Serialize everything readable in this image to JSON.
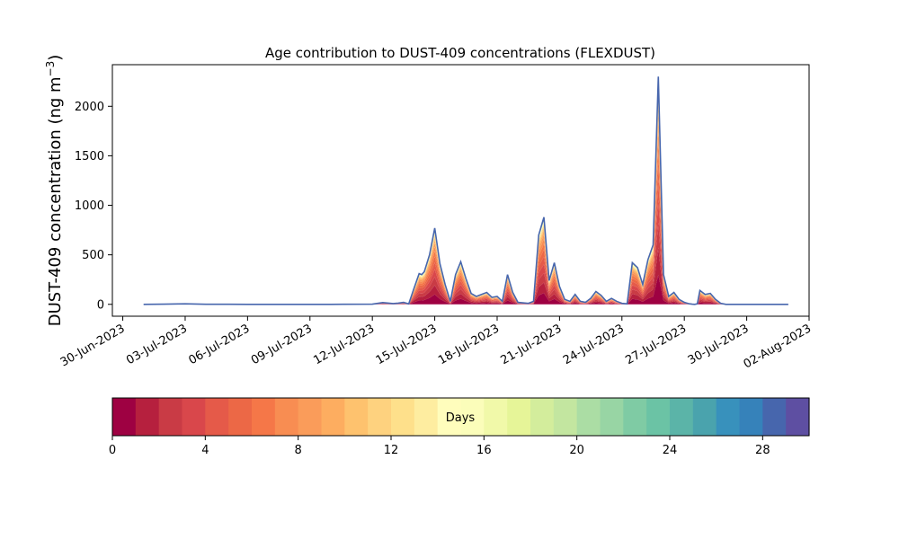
{
  "chart_data": {
    "type": "area",
    "title": "Age contribution to DUST-409 concentrations (FLEXDUST)",
    "ylabel": "DUST-409 concentration (ng m⁻³)",
    "ylabel_main": "DUST-409 concentration (ng m",
    "ylabel_sup": "−3",
    "ylabel_close": ")",
    "xlabel": "",
    "ylim": [
      -120,
      2420
    ],
    "xlim": [
      "2023-06-29T12:00",
      "2023-08-02T00:00"
    ],
    "yticks": [
      0,
      500,
      1000,
      1500,
      2000
    ],
    "ytick_labels": [
      "0",
      "500",
      "1000",
      "1500",
      "2000"
    ],
    "xticks": [
      "2023-06-30",
      "2023-07-03",
      "2023-07-06",
      "2023-07-09",
      "2023-07-12",
      "2023-07-15",
      "2023-07-18",
      "2023-07-21",
      "2023-07-24",
      "2023-07-27",
      "2023-07-30",
      "2023-08-02"
    ],
    "xtick_labels": [
      "30-Jun-2023",
      "03-Jul-2023",
      "06-Jul-2023",
      "09-Jul-2023",
      "12-Jul-2023",
      "15-Jul-2023",
      "18-Jul-2023",
      "21-Jul-2023",
      "24-Jul-2023",
      "27-Jul-2023",
      "30-Jul-2023",
      "02-Aug-2023"
    ],
    "grid": false,
    "x": [
      "2023-07-01T00:00",
      "2023-07-02T00:00",
      "2023-07-03T00:00",
      "2023-07-04T00:00",
      "2023-07-06T00:00",
      "2023-07-08T00:00",
      "2023-07-10T00:00",
      "2023-07-12T00:00",
      "2023-07-12T12:00",
      "2023-07-13T00:00",
      "2023-07-13T06:00",
      "2023-07-13T12:00",
      "2023-07-13T18:00",
      "2023-07-14T00:00",
      "2023-07-14T06:00",
      "2023-07-14T09:00",
      "2023-07-14T12:00",
      "2023-07-14T18:00",
      "2023-07-15T00:00",
      "2023-07-15T06:00",
      "2023-07-15T12:00",
      "2023-07-15T18:00",
      "2023-07-16T00:00",
      "2023-07-16T06:00",
      "2023-07-16T12:00",
      "2023-07-16T18:00",
      "2023-07-17T00:00",
      "2023-07-17T06:00",
      "2023-07-17T12:00",
      "2023-07-17T18:00",
      "2023-07-18T00:00",
      "2023-07-18T06:00",
      "2023-07-18T12:00",
      "2023-07-18T18:00",
      "2023-07-19T00:00",
      "2023-07-19T12:00",
      "2023-07-19T18:00",
      "2023-07-20T00:00",
      "2023-07-20T06:00",
      "2023-07-20T12:00",
      "2023-07-20T18:00",
      "2023-07-21T00:00",
      "2023-07-21T06:00",
      "2023-07-21T12:00",
      "2023-07-21T18:00",
      "2023-07-22T00:00",
      "2023-07-22T06:00",
      "2023-07-22T12:00",
      "2023-07-22T18:00",
      "2023-07-23T00:00",
      "2023-07-23T06:00",
      "2023-07-23T12:00",
      "2023-07-23T18:00",
      "2023-07-24T00:00",
      "2023-07-24T06:00",
      "2023-07-24T12:00",
      "2023-07-24T18:00",
      "2023-07-25T00:00",
      "2023-07-25T06:00",
      "2023-07-25T12:00",
      "2023-07-25T18:00",
      "2023-07-26T00:00",
      "2023-07-26T06:00",
      "2023-07-26T12:00",
      "2023-07-26T18:00",
      "2023-07-27T00:00",
      "2023-07-27T06:00",
      "2023-07-27T09:00",
      "2023-07-27T12:00",
      "2023-07-27T15:00",
      "2023-07-27T18:00",
      "2023-07-28T00:00",
      "2023-07-28T06:00",
      "2023-07-28T12:00",
      "2023-07-28T18:00",
      "2023-07-29T00:00",
      "2023-07-29T12:00",
      "2023-07-29T18:00",
      "2023-07-30T00:00",
      "2023-07-30T06:00",
      "2023-07-30T12:00",
      "2023-07-30T18:00",
      "2023-07-31T00:00",
      "2023-07-31T12:00",
      "2023-08-01T00:00"
    ],
    "total_values": [
      0,
      2,
      5,
      1,
      0,
      0,
      0,
      2,
      18,
      8,
      12,
      20,
      5,
      160,
      310,
      300,
      330,
      500,
      770,
      410,
      200,
      30,
      300,
      430,
      260,
      110,
      80,
      100,
      120,
      70,
      80,
      30,
      300,
      120,
      20,
      10,
      30,
      700,
      880,
      240,
      420,
      180,
      50,
      30,
      100,
      30,
      20,
      60,
      130,
      90,
      30,
      60,
      30,
      10,
      5,
      420,
      370,
      200,
      450,
      600,
      2300,
      300,
      80,
      120,
      50,
      20,
      5,
      2,
      0,
      5,
      140,
      100,
      110,
      50,
      10,
      0,
      0,
      0,
      0,
      0,
      0,
      0,
      0,
      0,
      0
    ],
    "age_bins_days": [
      0,
      1,
      2,
      3,
      4,
      5,
      6,
      7,
      8,
      9,
      10,
      11,
      12,
      13,
      14,
      15,
      16,
      17,
      18,
      19,
      20,
      21,
      22,
      23,
      24,
      25,
      26,
      27,
      28,
      29,
      30
    ],
    "age_fractions": [
      0.13,
      0.12,
      0.11,
      0.1,
      0.09,
      0.08,
      0.07,
      0.06,
      0.05,
      0.04,
      0.03,
      0.025,
      0.02,
      0.015,
      0.012,
      0.01,
      0.008,
      0.006,
      0.005,
      0.004,
      0.003,
      0.003,
      0.003,
      0.002,
      0.002,
      0.002,
      0.001,
      0.001,
      0.001,
      0.001
    ],
    "colorbar": {
      "label": "Days",
      "range": [
        0,
        30
      ],
      "ticks": [
        0,
        4,
        8,
        12,
        16,
        20,
        24,
        28
      ],
      "tick_labels": [
        "0",
        "4",
        "8",
        "12",
        "16",
        "20",
        "24",
        "28"
      ],
      "colors": [
        "#9e0142",
        "#b6203e",
        "#c93b45",
        "#d9474b",
        "#e55a49",
        "#ec6846",
        "#f57748",
        "#f88d52",
        "#fa9c5a",
        "#fdad60",
        "#fec26e",
        "#fed27f",
        "#fee08b",
        "#feeda0",
        "#fffdbc",
        "#fbfdba",
        "#f1f9a9",
        "#e6f598",
        "#d3ed9c",
        "#c3e6a0",
        "#abdda4",
        "#98d5a4",
        "#7fcba4",
        "#6bc3a5",
        "#5bb4a8",
        "#4aa3ad",
        "#3891bc",
        "#3682ba",
        "#4766ad",
        "#5e4fa2"
      ]
    }
  }
}
